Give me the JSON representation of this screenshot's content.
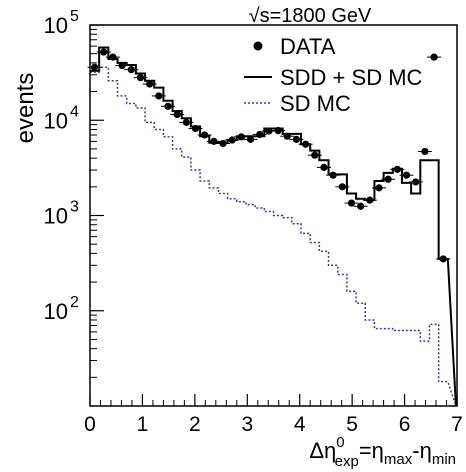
{
  "chart_data": {
    "type": "line",
    "title": "√s=1800 GeV",
    "ylabel": "events",
    "xlabel": {
      "delta": "Δη",
      "sup": "0",
      "sub": "exp",
      "eq": "=η",
      "max": "max",
      "minus": "-η",
      "min": "min"
    },
    "xlim": [
      0,
      7
    ],
    "ylim": [
      10,
      100000
    ],
    "yscale": "log",
    "x_ticks": [
      "0",
      "1",
      "2",
      "3",
      "4",
      "5",
      "6",
      "7"
    ],
    "y_ticks": [
      {
        "base": "10",
        "exp": "2",
        "value": 100
      },
      {
        "base": "10",
        "exp": "3",
        "value": 1000
      },
      {
        "base": "10",
        "exp": "4",
        "value": 10000
      },
      {
        "base": "10",
        "exp": "5",
        "value": 100000
      }
    ],
    "legend_position": "top-right",
    "bin_edges": [
      0,
      0.175,
      0.35,
      0.525,
      0.7,
      0.875,
      1.05,
      1.225,
      1.4,
      1.575,
      1.75,
      1.925,
      2.1,
      2.275,
      2.45,
      2.625,
      2.8,
      2.975,
      3.15,
      3.325,
      3.5,
      3.675,
      3.85,
      4.025,
      4.2,
      4.375,
      4.55,
      4.725,
      4.9,
      5.075,
      5.25,
      5.425,
      5.6,
      5.775,
      5.95,
      6.125,
      6.3,
      6.475,
      6.65,
      6.825
    ],
    "series": [
      {
        "name": "DATA",
        "style": "points",
        "color": "#000000",
        "x": [
          0.0875,
          0.2625,
          0.4375,
          0.6125,
          0.7875,
          0.9625,
          1.1375,
          1.3125,
          1.4875,
          1.6625,
          1.8375,
          2.0125,
          2.1875,
          2.3625,
          2.5375,
          2.7125,
          2.8875,
          3.0625,
          3.2375,
          3.4125,
          3.5875,
          3.7625,
          3.9375,
          4.1125,
          4.2875,
          4.4625,
          4.6375,
          4.8125,
          4.9875,
          5.1625,
          5.3375,
          5.5125,
          5.6875,
          5.8625,
          6.0375,
          6.2125,
          6.3875,
          6.5625,
          6.7375
        ],
        "values": [
          36000,
          52000,
          46000,
          37500,
          34000,
          28000,
          24000,
          18000,
          14000,
          11500,
          9500,
          8200,
          7000,
          6000,
          5700,
          6200,
          6700,
          6300,
          7100,
          7700,
          7800,
          6800,
          6300,
          5600,
          4300,
          3200,
          2650,
          2000,
          1350,
          1250,
          1450,
          1950,
          2400,
          3050,
          2650,
          2250,
          4700,
          46000,
          350
        ]
      },
      {
        "name": "SDD + SD MC",
        "style": "step",
        "color": "#000000",
        "values": [
          33000,
          58000,
          44000,
          40000,
          38000,
          31000,
          26000,
          22000,
          16000,
          12500,
          10500,
          8600,
          6800,
          5800,
          5800,
          6200,
          6800,
          6800,
          6800,
          8200,
          8200,
          7200,
          7200,
          5600,
          4800,
          3800,
          2700,
          2700,
          1700,
          1500,
          1450,
          2300,
          2800,
          3100,
          2200,
          1700,
          3800,
          3800,
          350
        ]
      },
      {
        "name": "SD MC",
        "style": "step-dotted",
        "color": "#3a3a9a",
        "values": [
          32000,
          36000,
          26000,
          18000,
          15000,
          13500,
          9500,
          8000,
          6700,
          5000,
          4100,
          3000,
          2300,
          1950,
          1700,
          1500,
          1400,
          1300,
          1200,
          1100,
          1000,
          950,
          820,
          650,
          520,
          420,
          300,
          240,
          160,
          120,
          80,
          65,
          65,
          62,
          62,
          62,
          48,
          72,
          18
        ]
      }
    ]
  }
}
